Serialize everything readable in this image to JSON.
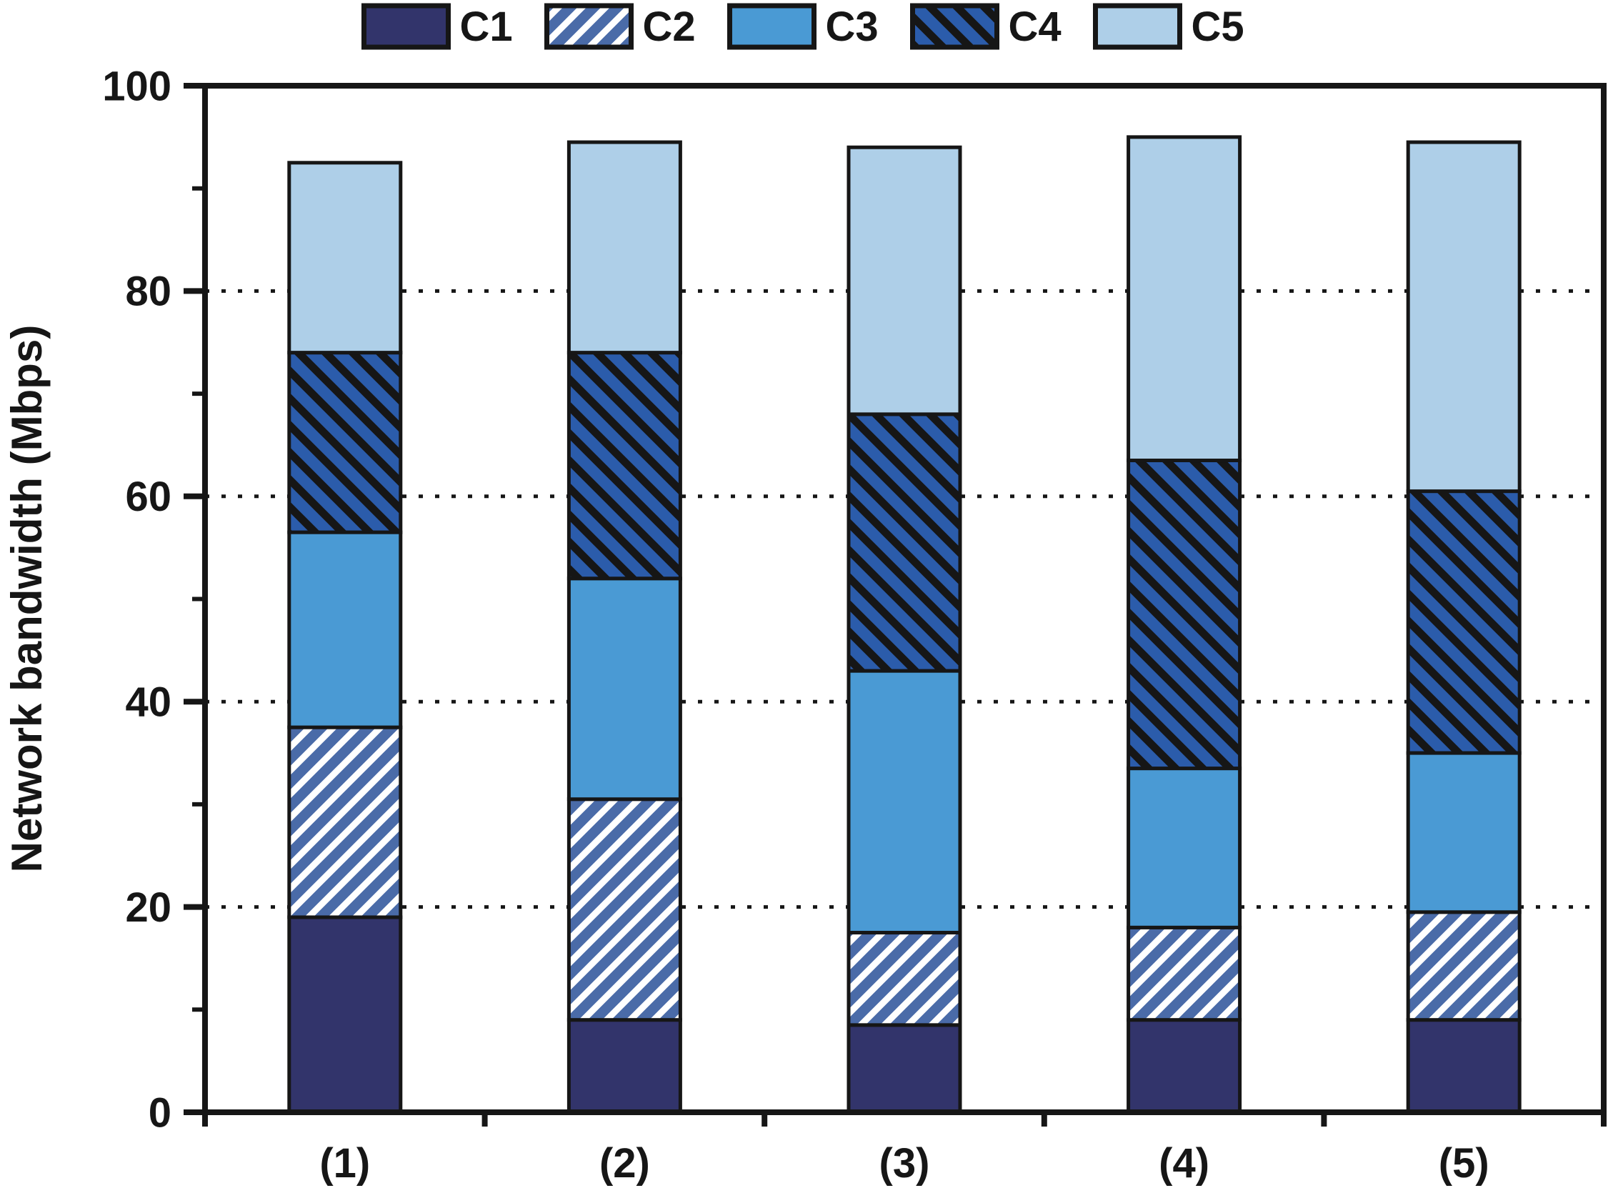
{
  "chart_data": {
    "type": "bar",
    "stacked": true,
    "title": "",
    "xlabel": "",
    "ylabel": "Network bandwidth (Mbps)",
    "categories": [
      "(1)",
      "(2)",
      "(3)",
      "(4)",
      "(5)"
    ],
    "series": [
      {
        "name": "C1",
        "style": "solid",
        "color": "#32346b",
        "values": [
          19.0,
          9.0,
          8.5,
          9.0,
          9.0
        ]
      },
      {
        "name": "C2",
        "style": "hatch-fwd",
        "color": "#4a6ba8",
        "hatch_color": "#ffffff",
        "values": [
          18.5,
          21.5,
          9.0,
          9.0,
          10.5
        ]
      },
      {
        "name": "C3",
        "style": "solid",
        "color": "#4a9ad4",
        "values": [
          19.0,
          21.5,
          25.5,
          15.5,
          15.5
        ]
      },
      {
        "name": "C4",
        "style": "hatch-back",
        "color": "#2b5cab",
        "hatch_color": "#161616",
        "values": [
          17.5,
          22.0,
          25.0,
          30.0,
          25.5
        ]
      },
      {
        "name": "C5",
        "style": "solid",
        "color": "#aecfe8",
        "values": [
          18.5,
          20.5,
          26.0,
          31.5,
          34.0
        ]
      }
    ],
    "stack_totals": [
      92.5,
      94.5,
      94.0,
      95.0,
      94.5
    ],
    "ylim": [
      0,
      100
    ],
    "yticks": [
      0,
      20,
      40,
      60,
      80,
      100
    ],
    "minor_yticks": [
      10,
      30,
      50,
      70,
      90
    ],
    "gridlines": {
      "y": [
        20,
        40,
        60,
        80
      ],
      "style": "dotted"
    },
    "legend_position": "top-center",
    "legend_labels": [
      "C1",
      "C2",
      "C3",
      "C4",
      "C5"
    ],
    "axis_color": "#161616",
    "bar_outline_color": "#161616"
  }
}
